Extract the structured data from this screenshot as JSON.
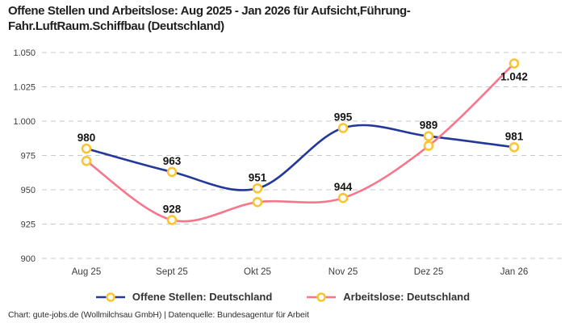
{
  "title": "Offene Stellen und Arbeitslose: Aug 2025 - Jan 2026 für Aufsicht,Führung-Fahr.LuftRaum.Schiffbau (Deutschland)",
  "footer": "Chart: gute-jobs.de (Wollmilchsau GmbH) | Datenquelle: Bundesagentur für Arbeit",
  "colors": {
    "offene_stellen_line": "#23389b",
    "arbeitslose_line": "#f8768b",
    "marker_ring": "#fbc531",
    "grid": "#c9c9c9",
    "axis_text": "#3c3c3c",
    "point_label": "#141414",
    "background": "#ffffff"
  },
  "chart_data": {
    "type": "line",
    "categories": [
      "Aug 25",
      "Sept 25",
      "Okt 25",
      "Nov 25",
      "Dez 25",
      "Jan 26"
    ],
    "series": [
      {
        "name": "Offene Stellen: Deutschland",
        "values": [
          980,
          963,
          951,
          995,
          989,
          981
        ],
        "point_labels": [
          "980",
          "963",
          "951",
          "995",
          "989",
          "981"
        ],
        "label_sides": [
          "above",
          "above",
          "above",
          "above",
          "above",
          "above"
        ],
        "color": "#23389b"
      },
      {
        "name": "Arbeitslose: Deutschland",
        "values": [
          971,
          928,
          941,
          944,
          982,
          1042
        ],
        "point_labels": [
          "",
          "928",
          "",
          "944",
          "",
          "1.042"
        ],
        "label_sides": [
          "above",
          "above",
          "above",
          "above",
          "above",
          "below"
        ],
        "color": "#f8768b"
      }
    ],
    "ylim": [
      900,
      1050
    ],
    "yticks": [
      900,
      925,
      950,
      975,
      1000,
      1025,
      1050
    ],
    "ytick_labels": [
      "900",
      "925",
      "950",
      "975",
      "1.000",
      "1.025",
      "1.050"
    ],
    "grid": "horizontal-dashed",
    "legend_position": "bottom-center",
    "marker_style": "yellow-ring-white-fill"
  }
}
